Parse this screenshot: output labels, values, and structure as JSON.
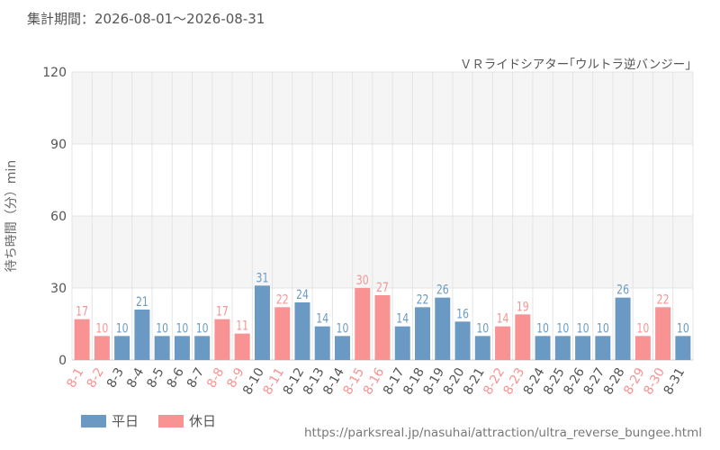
{
  "period_label": "集計期間：2026-08-01～2026-08-31",
  "source_url": "https://parksreal.jp/nasuhai/attraction/ultra_reverse_bungee.html",
  "colors": {
    "weekday": "#6a9ac4",
    "holiday": "#f99393",
    "grid": "#e4e4e4",
    "band": "#f5f5f5"
  },
  "legend": [
    {
      "label": "平日",
      "color": "#6a9ac4"
    },
    {
      "label": "休日",
      "color": "#f99393"
    }
  ],
  "chart_data": {
    "type": "bar",
    "title": "",
    "subtitle": "ＶＲライドシアター｢ウルトラ逆バンジー｣",
    "xlabel": "",
    "ylabel": "待ち時間（分）min",
    "ylim": [
      0,
      120
    ],
    "yticks": [
      0,
      30,
      60,
      90,
      120
    ],
    "grid": true,
    "legend_position": "bottom-left",
    "categories": [
      "8-1",
      "8-2",
      "8-3",
      "8-4",
      "8-5",
      "8-6",
      "8-7",
      "8-8",
      "8-9",
      "8-10",
      "8-11",
      "8-12",
      "8-13",
      "8-14",
      "8-15",
      "8-16",
      "8-17",
      "8-18",
      "8-19",
      "8-20",
      "8-21",
      "8-22",
      "8-23",
      "8-24",
      "8-25",
      "8-26",
      "8-27",
      "8-28",
      "8-29",
      "8-30",
      "8-31"
    ],
    "values": [
      17,
      10,
      10,
      21,
      10,
      10,
      10,
      17,
      11,
      31,
      22,
      24,
      14,
      10,
      30,
      27,
      14,
      22,
      26,
      16,
      10,
      14,
      19,
      10,
      10,
      10,
      10,
      26,
      10,
      22,
      10
    ],
    "day_type": [
      "休日",
      "休日",
      "平日",
      "平日",
      "平日",
      "平日",
      "平日",
      "休日",
      "休日",
      "平日",
      "休日",
      "平日",
      "平日",
      "平日",
      "休日",
      "休日",
      "平日",
      "平日",
      "平日",
      "平日",
      "平日",
      "休日",
      "休日",
      "平日",
      "平日",
      "平日",
      "平日",
      "平日",
      "休日",
      "休日",
      "平日"
    ]
  }
}
